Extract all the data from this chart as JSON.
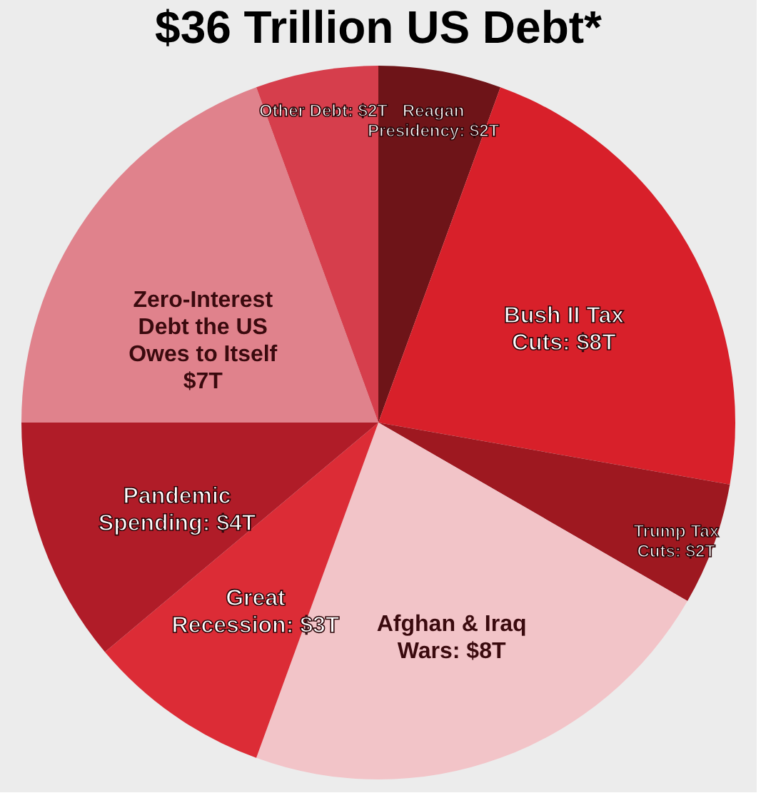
{
  "chart_data": {
    "type": "pie",
    "title": "$36 Trillion US Debt*",
    "categories": [
      "Reagan Presidency",
      "Bush II Tax Cuts",
      "Trump Tax Cuts",
      "Afghan & Iraq Wars",
      "Great Recession",
      "Pandemic Spending",
      "Zero-Interest Debt the US Owes to Itself",
      "Other Debt"
    ],
    "values": [
      2,
      8,
      2,
      8,
      3,
      4,
      7,
      2
    ],
    "value_labels": [
      "$2T",
      "$8T",
      "$2T",
      "$8T",
      "$3T",
      "$4T",
      "$7T",
      "$2T"
    ],
    "colors": [
      "#6e1418",
      "#d8202a",
      "#9e1820",
      "#f2c4c8",
      "#dc2c36",
      "#b01c28",
      "#e0828c",
      "#d63e4c"
    ],
    "legend": false
  }
}
